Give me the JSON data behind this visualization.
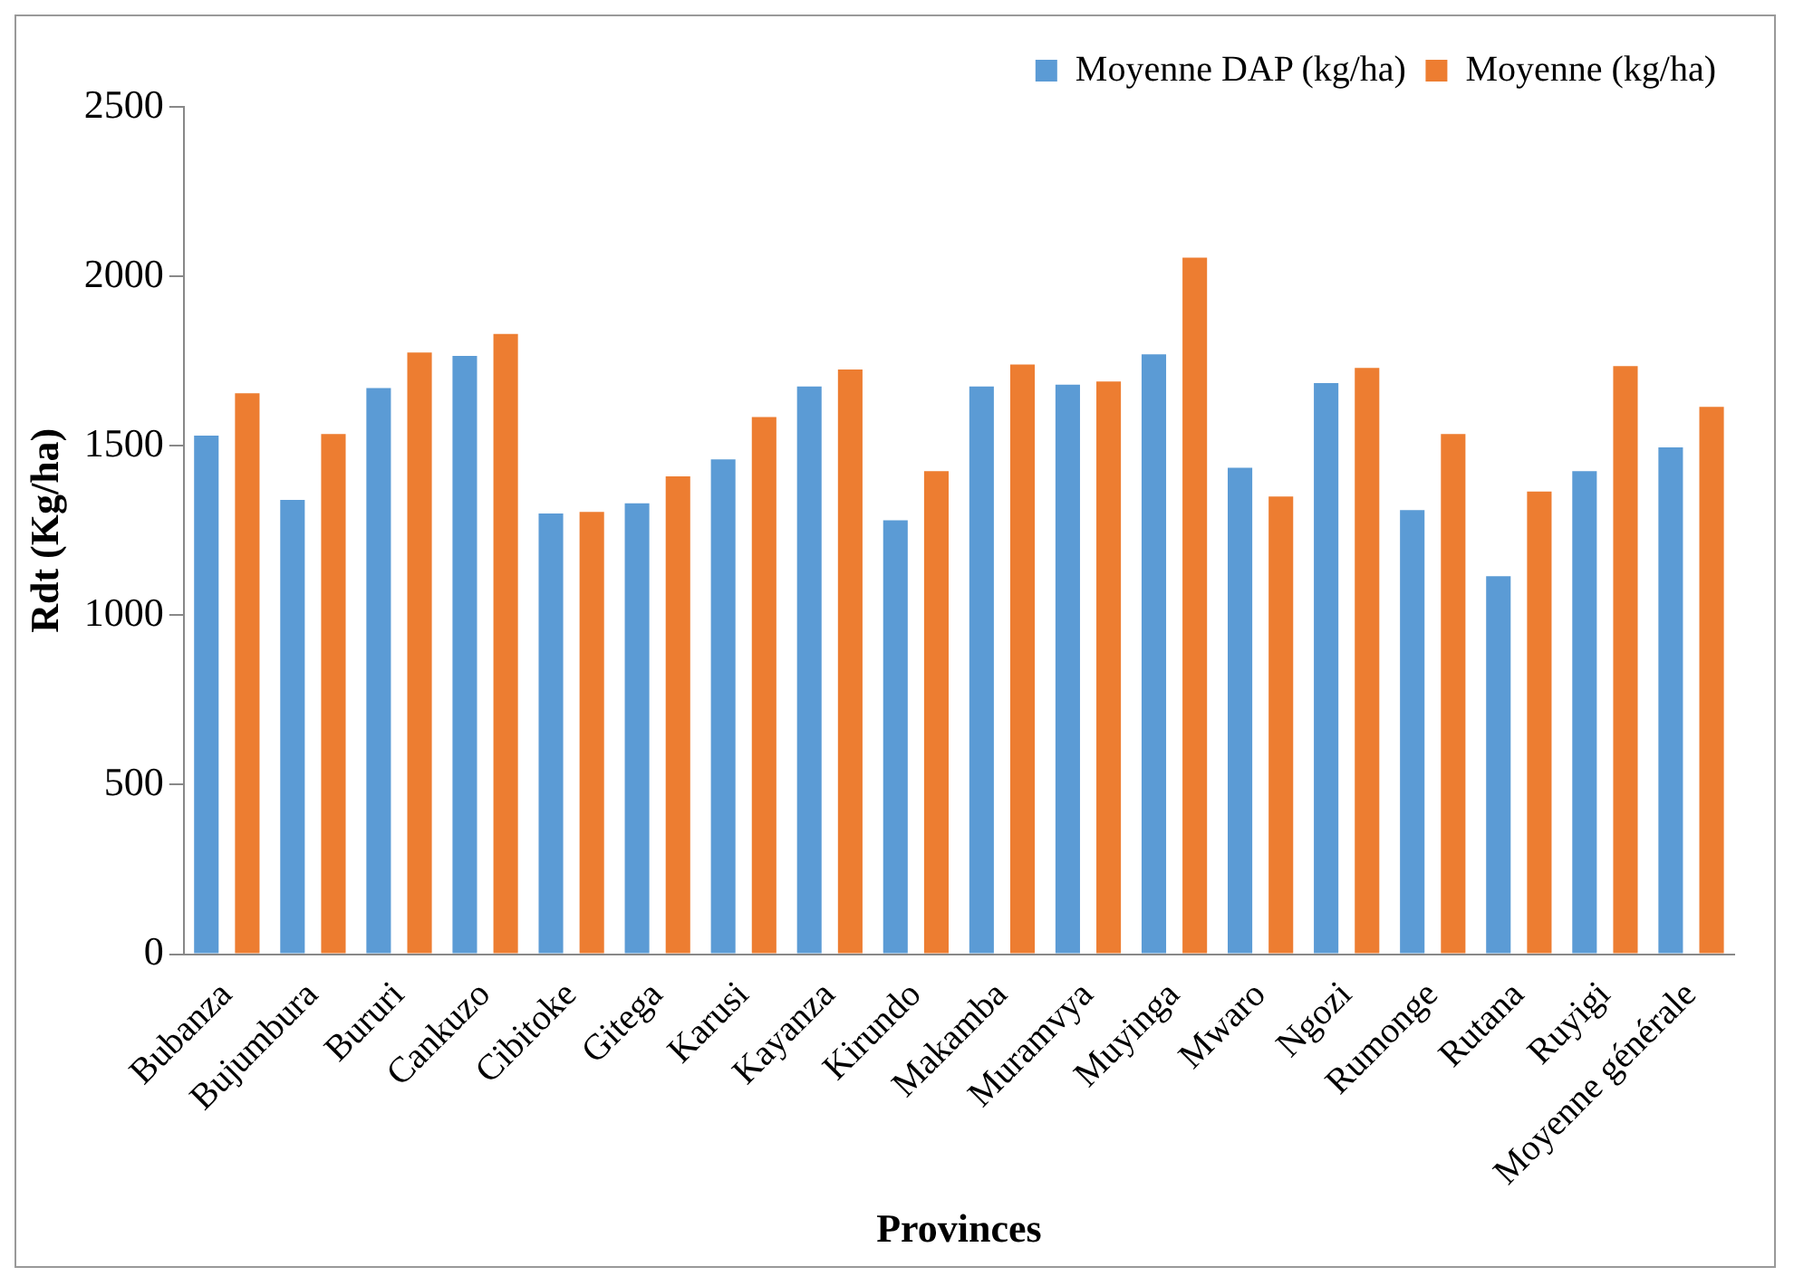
{
  "chart_data": {
    "type": "bar",
    "xlabel": "Provinces",
    "ylabel": "Rdt (Kg/ha)",
    "categories": [
      "Bubanza",
      "Bujumbura",
      "Bururi",
      "Cankuzo",
      "Cibitoke",
      "Gitega",
      "Karusi",
      "Kayanza",
      "Kirundo",
      "Makamba",
      "Muramvya",
      "Muyinga",
      "Mwaro",
      "Ngozi",
      "Rumonge",
      "Rutana",
      "Ruyigi",
      "Moyenne générale"
    ],
    "series": [
      {
        "name": "Moyenne DAP (kg/ha)",
        "color": "#5b9bd5",
        "values": [
          1530,
          1340,
          1670,
          1765,
          1300,
          1330,
          1460,
          1675,
          1280,
          1675,
          1680,
          1770,
          1435,
          1685,
          1310,
          1115,
          1425,
          1495
        ]
      },
      {
        "name": "Moyenne (kg/ha)",
        "color": "#ed7d31",
        "values": [
          1655,
          1535,
          1775,
          1830,
          1305,
          1410,
          1585,
          1725,
          1425,
          1740,
          1690,
          2055,
          1350,
          1730,
          1535,
          1365,
          1735,
          1615
        ]
      }
    ],
    "ylim": [
      0,
      2500
    ],
    "yticks": [
      0,
      500,
      1000,
      1500,
      2000,
      2500
    ],
    "grid": false,
    "legend": "top right"
  }
}
